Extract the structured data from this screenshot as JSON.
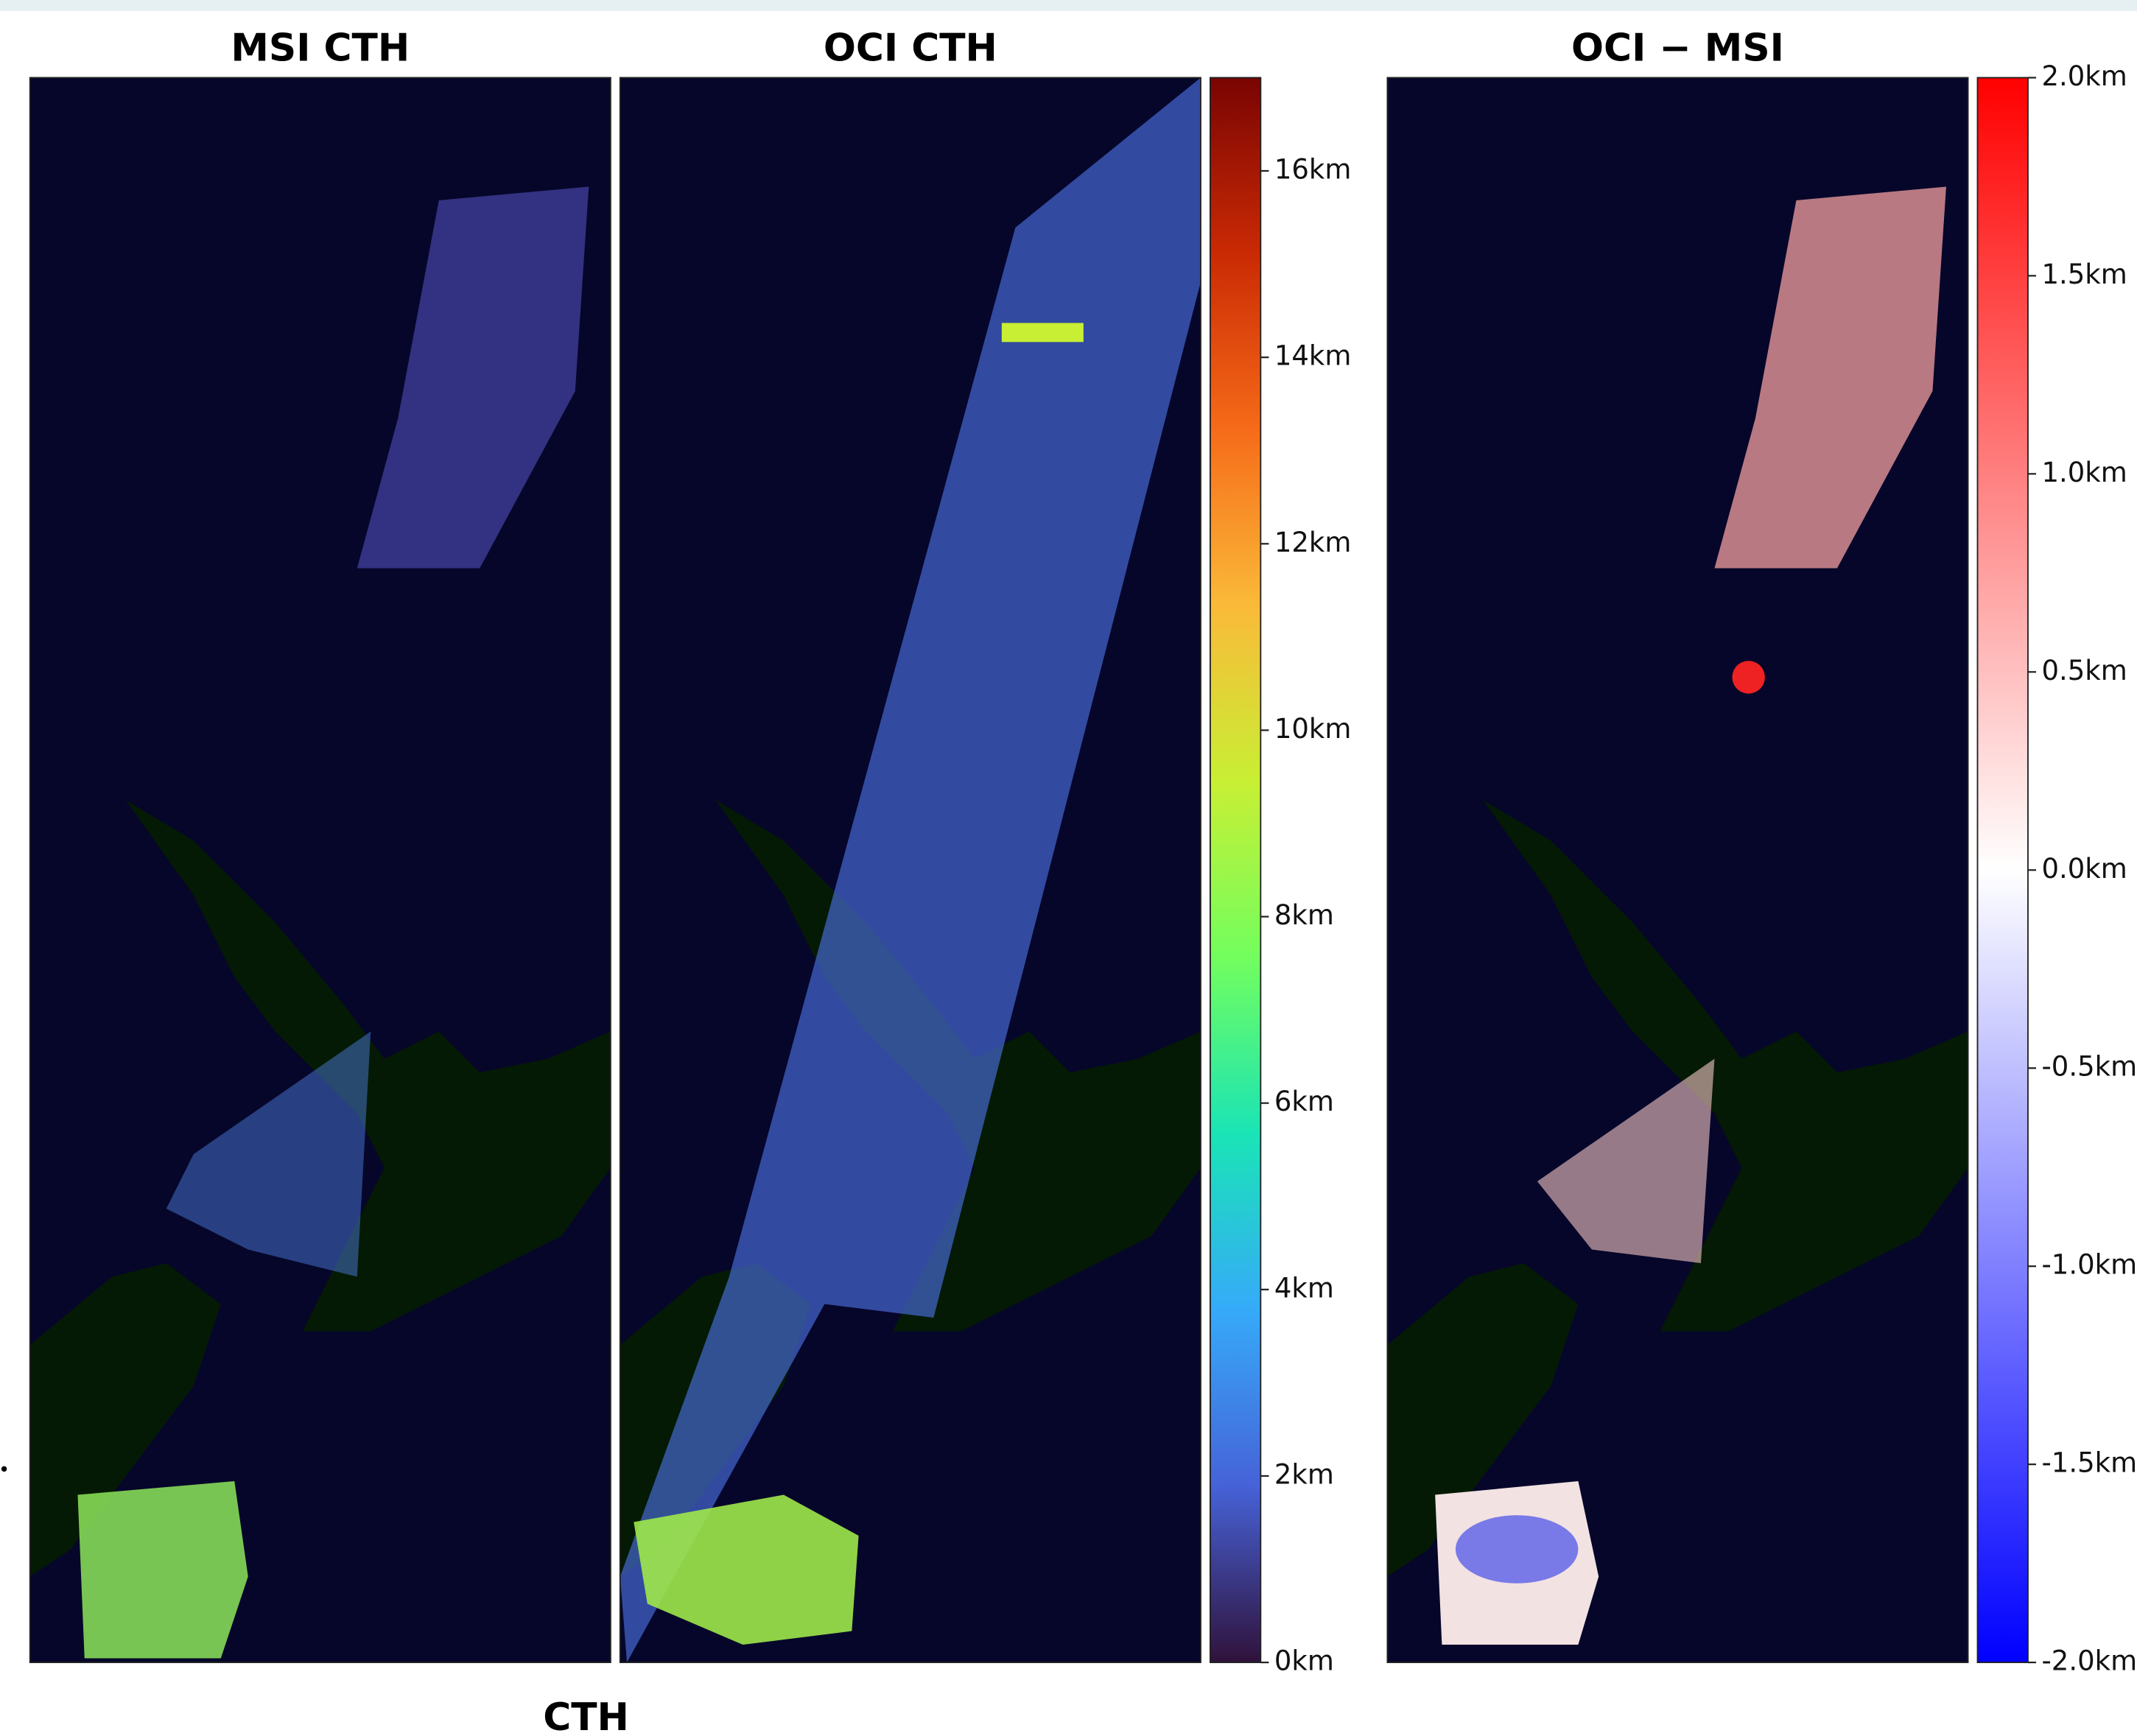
{
  "chart_data": [
    {
      "type": "image",
      "title": "MSI CTH"
    },
    {
      "type": "image",
      "title": "OCI CTH",
      "colorbar": {
        "lim": [
          0,
          17
        ],
        "ticks": [
          {
            "value": 0,
            "label": "0km"
          },
          {
            "value": 2,
            "label": "2km"
          },
          {
            "value": 4,
            "label": "4km"
          },
          {
            "value": 6,
            "label": "6km"
          },
          {
            "value": 8,
            "label": "8km"
          },
          {
            "value": 10,
            "label": "10km"
          },
          {
            "value": 12,
            "label": "12km"
          },
          {
            "value": 14,
            "label": "14km"
          },
          {
            "value": 16,
            "label": "16km"
          }
        ],
        "colormap": [
          "#30123b",
          "#4662d7",
          "#36aaf9",
          "#1ae4b6",
          "#72fe5e",
          "#c8ef34",
          "#faba39",
          "#f66b19",
          "#ca2a04",
          "#7a0403"
        ]
      }
    },
    {
      "type": "image",
      "title": "OCI − MSI",
      "colorbar": {
        "lim": [
          -2,
          2
        ],
        "ticks": [
          {
            "value": -2,
            "label": "-2.0km"
          },
          {
            "value": -1.5,
            "label": "-1.5km"
          },
          {
            "value": -1,
            "label": "-1.0km"
          },
          {
            "value": -0.5,
            "label": "-0.5km"
          },
          {
            "value": 0,
            "label": "0.0km"
          },
          {
            "value": 0.5,
            "label": "0.5km"
          },
          {
            "value": 1,
            "label": "1.0km"
          },
          {
            "value": 1.5,
            "label": "1.5km"
          },
          {
            "value": 2,
            "label": "2.0km"
          }
        ],
        "colormap": [
          "#0000ff",
          "#ffffff",
          "#ff0000"
        ]
      }
    }
  ],
  "caption": "CTH"
}
